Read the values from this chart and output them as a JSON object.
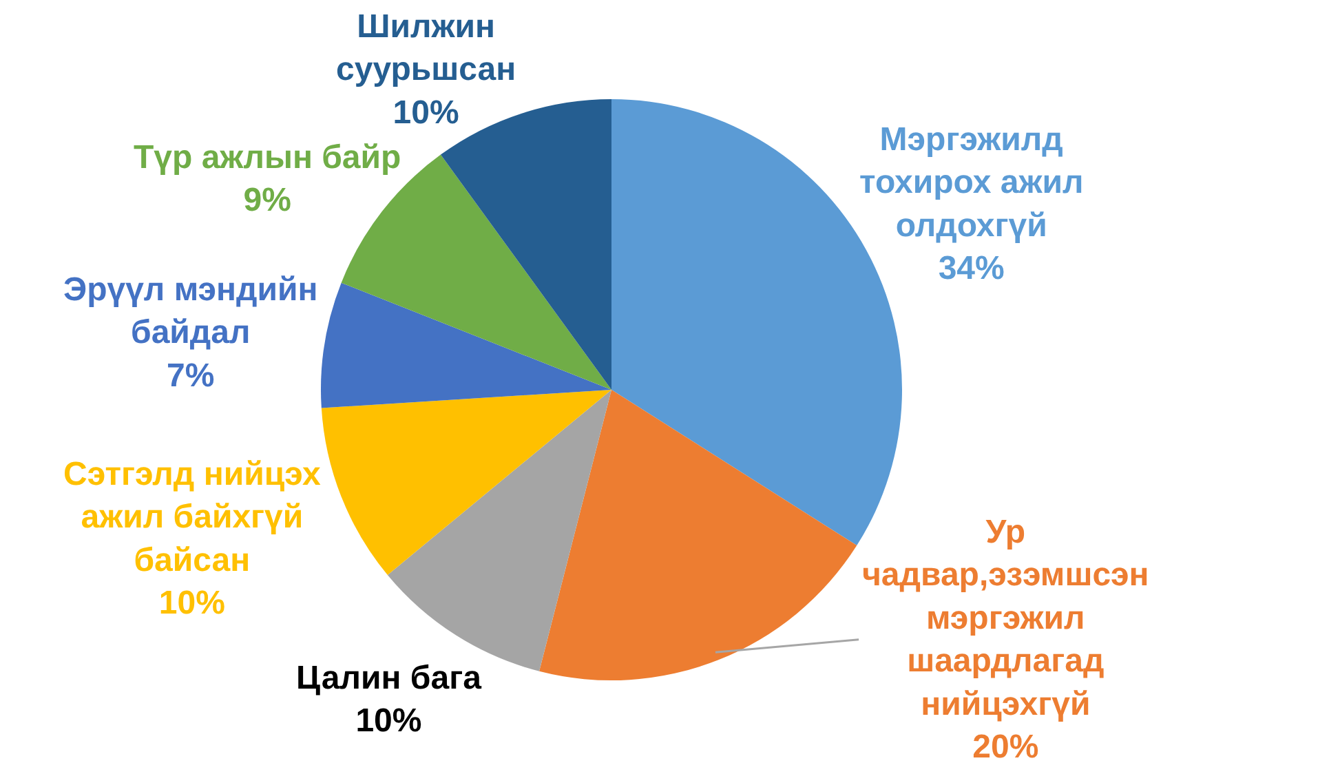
{
  "chart_data": {
    "type": "pie",
    "categories": [
      "Мэргэжилд тохирох ажил олдохгүй",
      "Ур чадвар,эзэмшсэн мэргэжил шаардлагад нийцэхгүй",
      "Цалин бага",
      "Сэтгэлд нийцэх ажил байхгүй байсан",
      "Эрүүл мэндийн байдал",
      "Түр ажлын байр",
      "Шилжин суурьшсан"
    ],
    "values": [
      34,
      20,
      10,
      10,
      7,
      9,
      10
    ],
    "value_labels": [
      "34%",
      "20%",
      "10%",
      "10%",
      "7%",
      "9%",
      "10%"
    ],
    "colors": [
      "#5b9bd5",
      "#ed7d31",
      "#a5a5a5",
      "#ffc000",
      "#4472c4",
      "#70ad47",
      "#255e91"
    ]
  }
}
